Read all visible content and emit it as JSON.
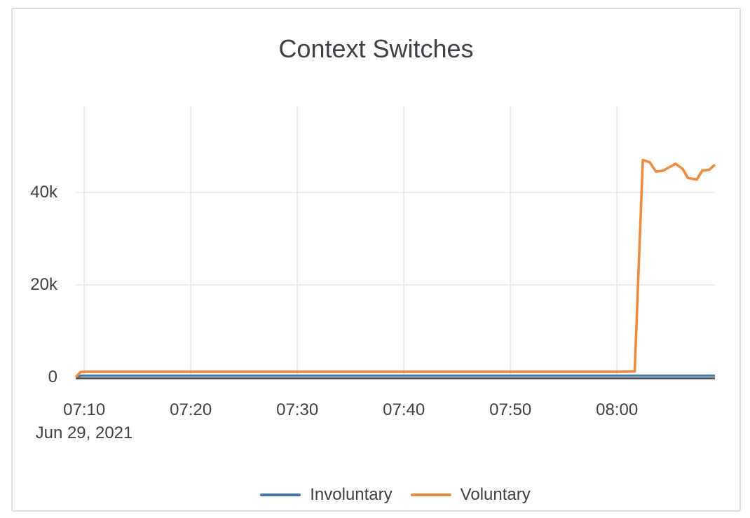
{
  "card": {
    "border_color": "#dcdcdc",
    "background": "#ffffff"
  },
  "chart_data": {
    "type": "line",
    "title": "Context Switches",
    "xlabel": "",
    "ylabel": "",
    "grid": true,
    "gridline_color": "#e9e9e9",
    "axis_line_color": "#444444",
    "text_color": "#3d4045",
    "legend_position": "bottom",
    "x_axis": {
      "tick_labels": [
        "07:10",
        "07:20",
        "07:30",
        "07:40",
        "07:50",
        "08:00"
      ],
      "date_label": "Jun 29, 2021",
      "range": [
        "07:09:12",
        "08:09:12"
      ]
    },
    "y_axis": {
      "ticks": [
        {
          "label": "0",
          "value": 0
        },
        {
          "label": "20k",
          "value": 20000
        },
        {
          "label": "40k",
          "value": 40000
        }
      ],
      "range": [
        0,
        58600
      ]
    },
    "series": [
      {
        "name": "Involuntary",
        "color": "#3e78ad",
        "stroke_width": 3.2,
        "points": [
          [
            "07:09:12",
            0
          ],
          [
            "07:09:40",
            340
          ],
          [
            "07:10:00",
            350
          ],
          [
            "07:15:00",
            350
          ],
          [
            "07:20:00",
            350
          ],
          [
            "07:25:00",
            350
          ],
          [
            "07:30:00",
            350
          ],
          [
            "07:35:00",
            350
          ],
          [
            "07:40:00",
            350
          ],
          [
            "07:45:00",
            350
          ],
          [
            "07:50:00",
            350
          ],
          [
            "07:55:00",
            350
          ],
          [
            "08:00:00",
            350
          ],
          [
            "08:05:00",
            350
          ],
          [
            "08:09:12",
            350
          ]
        ]
      },
      {
        "name": "Voluntary",
        "color": "#ee8c3e",
        "stroke_width": 3.6,
        "points": [
          [
            "07:09:12",
            0
          ],
          [
            "07:09:40",
            1150
          ],
          [
            "07:10:00",
            1200
          ],
          [
            "07:15:00",
            1200
          ],
          [
            "07:20:00",
            1200
          ],
          [
            "07:25:00",
            1200
          ],
          [
            "07:30:00",
            1200
          ],
          [
            "07:35:00",
            1200
          ],
          [
            "07:40:00",
            1200
          ],
          [
            "07:45:00",
            1200
          ],
          [
            "07:50:00",
            1200
          ],
          [
            "07:55:00",
            1200
          ],
          [
            "08:00:00",
            1200
          ],
          [
            "08:01:40",
            1250
          ],
          [
            "08:02:26",
            47000
          ],
          [
            "08:03:05",
            46500
          ],
          [
            "08:03:40",
            44500
          ],
          [
            "08:04:20",
            44700
          ],
          [
            "08:05:30",
            46200
          ],
          [
            "08:06:10",
            45100
          ],
          [
            "08:06:40",
            43100
          ],
          [
            "08:07:30",
            42800
          ],
          [
            "08:08:00",
            44700
          ],
          [
            "08:08:40",
            44900
          ],
          [
            "08:09:12",
            46000
          ]
        ]
      }
    ]
  }
}
